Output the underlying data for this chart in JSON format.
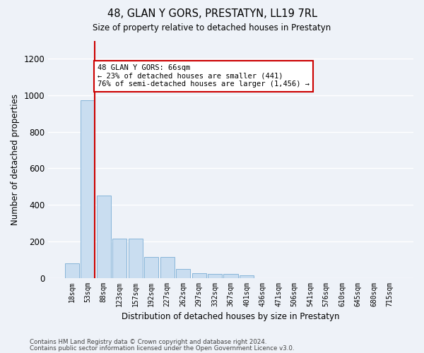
{
  "title": "48, GLAN Y GORS, PRESTATYN, LL19 7RL",
  "subtitle": "Size of property relative to detached houses in Prestatyn",
  "xlabel": "Distribution of detached houses by size in Prestatyn",
  "ylabel": "Number of detached properties",
  "categories": [
    "18sqm",
    "53sqm",
    "88sqm",
    "123sqm",
    "157sqm",
    "192sqm",
    "227sqm",
    "262sqm",
    "297sqm",
    "332sqm",
    "367sqm",
    "401sqm",
    "436sqm",
    "471sqm",
    "506sqm",
    "541sqm",
    "576sqm",
    "610sqm",
    "645sqm",
    "680sqm",
    "715sqm"
  ],
  "values": [
    80,
    975,
    450,
    215,
    215,
    115,
    115,
    48,
    25,
    22,
    22,
    12,
    0,
    0,
    0,
    0,
    0,
    0,
    0,
    0,
    0
  ],
  "bar_color": "#c9ddf0",
  "bar_edge_color": "#7aadd4",
  "marker_line_color": "#cc0000",
  "annotation_line1": "48 GLAN Y GORS: 66sqm",
  "annotation_line2": "← 23% of detached houses are smaller (441)",
  "annotation_line3": "76% of semi-detached houses are larger (1,456) →",
  "annotation_box_color": "#cc0000",
  "ylim": [
    0,
    1300
  ],
  "yticks": [
    0,
    200,
    400,
    600,
    800,
    1000,
    1200
  ],
  "footer1": "Contains HM Land Registry data © Crown copyright and database right 2024.",
  "footer2": "Contains public sector information licensed under the Open Government Licence v3.0.",
  "bg_color": "#eef2f8",
  "grid_color": "#ffffff"
}
